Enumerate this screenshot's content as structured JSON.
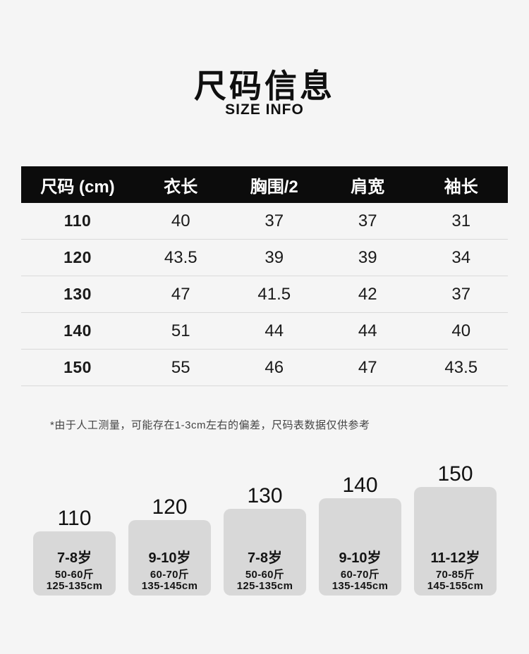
{
  "header": {
    "title": "尺码信息",
    "subtitle": "SIZE INFO"
  },
  "size_table": {
    "columns": [
      "尺码 (cm)",
      "衣长",
      "胸围/2",
      "肩宽",
      "袖长"
    ],
    "rows": [
      {
        "size": "110",
        "values": [
          "40",
          "37",
          "37",
          "31"
        ]
      },
      {
        "size": "120",
        "values": [
          "43.5",
          "39",
          "39",
          "34"
        ]
      },
      {
        "size": "130",
        "values": [
          "47",
          "41.5",
          "42",
          "37"
        ]
      },
      {
        "size": "140",
        "values": [
          "51",
          "44",
          "44",
          "40"
        ]
      },
      {
        "size": "150",
        "values": [
          "55",
          "46",
          "47",
          "43.5"
        ]
      }
    ]
  },
  "note": "*由于人工测量，可能存在1-3cm左右的偏差，尺码表数据仅供参考",
  "size_guide": {
    "bars": [
      {
        "size": "110",
        "age": "7-8岁",
        "weight": "50-60斤",
        "height": "125-135cm"
      },
      {
        "size": "120",
        "age": "9-10岁",
        "weight": "60-70斤",
        "height": "135-145cm"
      },
      {
        "size": "130",
        "age": "7-8岁",
        "weight": "50-60斤",
        "height": "125-135cm"
      },
      {
        "size": "140",
        "age": "9-10岁",
        "weight": "60-70斤",
        "height": "135-145cm"
      },
      {
        "size": "150",
        "age": "11-12岁",
        "weight": "70-85斤",
        "height": "145-155cm"
      }
    ]
  },
  "colors": {
    "page_background": "#f5f5f5",
    "table_header_background": "#0c0c0c",
    "table_header_text": "#ffffff",
    "body_text": "#1a1a1a",
    "divider": "#dadada",
    "bar_fill": "#d8d8d8",
    "note_text": "#444444"
  },
  "chart_data": [
    {
      "type": "table",
      "title": "尺码信息 / SIZE INFO",
      "columns": [
        "尺码 (cm)",
        "衣长",
        "胸围/2",
        "肩宽",
        "袖长"
      ],
      "rows": [
        [
          "110",
          40,
          37,
          37,
          31
        ],
        [
          "120",
          43.5,
          39,
          39,
          34
        ],
        [
          "130",
          47,
          41.5,
          42,
          37
        ],
        [
          "140",
          51,
          44,
          44,
          40
        ],
        [
          "150",
          55,
          46,
          47,
          43.5
        ]
      ],
      "footnote": "*由于人工测量，可能存在1-3cm左右的偏差，尺码表数据仅供参考"
    },
    {
      "type": "bar",
      "categories": [
        "110",
        "120",
        "130",
        "140",
        "150"
      ],
      "series": [
        {
          "name": "relative-step-height",
          "values": [
            91,
            107,
            123,
            138,
            154
          ]
        }
      ],
      "annotations": [
        "7-8岁 50-60斤 125-135cm",
        "9-10岁 60-70斤 135-145cm",
        "7-8岁 50-60斤 125-135cm",
        "9-10岁 60-70斤 135-145cm",
        "11-12岁 70-85斤 145-155cm"
      ],
      "grid": false,
      "legend_position": "none",
      "note": "decorative stepped size-guide bars; heights are relative, no numeric axis"
    }
  ]
}
